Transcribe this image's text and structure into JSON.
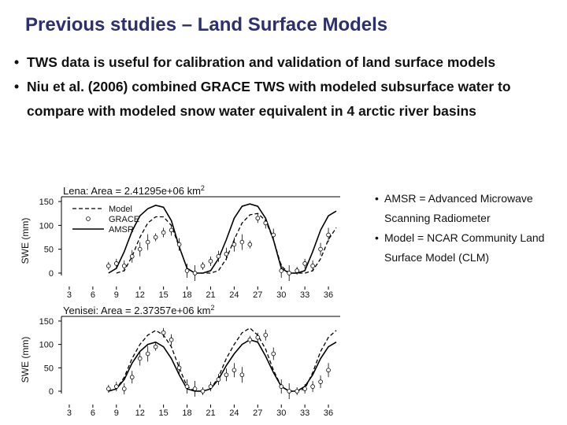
{
  "slide": {
    "title": "Previous studies – Land Surface Models",
    "bullets": [
      "TWS data is useful for calibration and validation of land surface models",
      "Niu et al. (2006) combined GRACE TWS with modeled subsurface water to compare with modeled snow water equivalent in 4 arctic river basins"
    ],
    "notes": [
      "AMSR = Advanced Microwave Scanning Radiometer",
      "Model = NCAR Community Land Surface Model (CLM)"
    ],
    "bullet_glyph": "•"
  },
  "chart_data": [
    {
      "type": "line",
      "title": "Lena: Area = 2.41295e+06 km",
      "title_superscript": "2",
      "ylabel": "SWE (mm)",
      "xlabel": "",
      "xlim": [
        2,
        37.5
      ],
      "ylim": [
        -5,
        160
      ],
      "xticks": [
        3,
        6,
        9,
        12,
        15,
        18,
        21,
        24,
        27,
        30,
        33,
        36
      ],
      "yticks": [
        0,
        50,
        100,
        150
      ],
      "legend": {
        "placement": "top-left",
        "entries": [
          "Model",
          "GRACE",
          "AMSR"
        ]
      },
      "series": [
        {
          "name": "Model",
          "style": "dashed",
          "x": [
            9,
            10,
            11,
            12,
            13,
            14,
            15,
            16,
            17,
            18,
            19,
            20,
            21,
            22,
            23,
            24,
            25,
            26,
            27,
            28,
            29,
            30,
            31,
            32,
            33,
            34,
            35,
            36,
            37
          ],
          "y": [
            0,
            5,
            35,
            75,
            105,
            118,
            118,
            100,
            55,
            10,
            0,
            0,
            0,
            5,
            30,
            70,
            105,
            122,
            125,
            110,
            70,
            15,
            0,
            0,
            0,
            5,
            30,
            70,
            95
          ]
        },
        {
          "name": "AMSR",
          "style": "solid",
          "x": [
            8,
            9,
            10,
            11,
            12,
            13,
            14,
            15,
            16,
            17,
            18,
            19,
            20,
            21,
            22,
            23,
            24,
            25,
            26,
            27,
            28,
            29,
            30,
            31,
            32,
            33,
            34,
            35,
            36,
            37
          ],
          "y": [
            0,
            10,
            45,
            88,
            120,
            135,
            142,
            138,
            110,
            55,
            10,
            0,
            0,
            5,
            30,
            70,
            115,
            140,
            145,
            140,
            115,
            70,
            10,
            0,
            0,
            5,
            45,
            90,
            120,
            130
          ]
        },
        {
          "name": "GRACE",
          "style": "points",
          "x": [
            8,
            9,
            10,
            11,
            12,
            13,
            14,
            15,
            16,
            17,
            18,
            19,
            20,
            21,
            22,
            23,
            24,
            25,
            26,
            27,
            28,
            29,
            30,
            31,
            32,
            33,
            34,
            35,
            36
          ],
          "y": [
            15,
            20,
            15,
            35,
            50,
            65,
            75,
            85,
            90,
            60,
            5,
            0,
            15,
            25,
            35,
            40,
            60,
            65,
            60,
            115,
            105,
            80,
            5,
            0,
            5,
            20,
            15,
            50,
            80
          ]
        }
      ]
    },
    {
      "type": "line",
      "title": "Yenisei: Area = 2.37357e+06 km",
      "title_superscript": "2",
      "ylabel": "SWE (mm)",
      "xlabel": "",
      "xlim": [
        2,
        37.5
      ],
      "ylim": [
        -5,
        160
      ],
      "xticks": [
        3,
        6,
        9,
        12,
        15,
        18,
        21,
        24,
        27,
        30,
        33,
        36
      ],
      "yticks": [
        0,
        50,
        100,
        150
      ],
      "legend": {
        "placement": "none",
        "entries": []
      },
      "series": [
        {
          "name": "Model",
          "style": "dashed",
          "x": [
            8,
            9,
            10,
            11,
            12,
            13,
            14,
            15,
            16,
            17,
            18,
            19,
            20,
            21,
            22,
            23,
            24,
            25,
            26,
            27,
            28,
            29,
            30,
            31,
            32,
            33,
            34,
            35,
            36,
            37
          ],
          "y": [
            0,
            5,
            30,
            70,
            100,
            120,
            130,
            120,
            95,
            50,
            10,
            0,
            0,
            5,
            30,
            70,
            100,
            125,
            135,
            120,
            90,
            45,
            10,
            0,
            0,
            5,
            40,
            85,
            115,
            130
          ]
        },
        {
          "name": "AMSR",
          "style": "solid",
          "x": [
            8,
            9,
            10,
            11,
            12,
            13,
            14,
            15,
            16,
            17,
            18,
            19,
            20,
            21,
            22,
            23,
            24,
            25,
            26,
            27,
            28,
            29,
            30,
            31,
            32,
            33,
            34,
            35,
            36,
            37
          ],
          "y": [
            0,
            5,
            25,
            60,
            85,
            100,
            105,
            95,
            70,
            35,
            5,
            0,
            0,
            5,
            25,
            55,
            80,
            100,
            110,
            105,
            75,
            40,
            10,
            0,
            0,
            10,
            35,
            70,
            95,
            105
          ]
        },
        {
          "name": "GRACE",
          "style": "points",
          "x": [
            8,
            9,
            10,
            11,
            12,
            13,
            14,
            15,
            16,
            17,
            18,
            19,
            20,
            21,
            22,
            23,
            24,
            25,
            26,
            27,
            28,
            29,
            30,
            31,
            32,
            33,
            34,
            35,
            36
          ],
          "y": [
            5,
            10,
            5,
            30,
            70,
            80,
            95,
            125,
            110,
            50,
            10,
            5,
            0,
            10,
            25,
            35,
            45,
            35,
            110,
            115,
            120,
            80,
            10,
            0,
            0,
            5,
            10,
            20,
            45
          ]
        }
      ]
    }
  ]
}
